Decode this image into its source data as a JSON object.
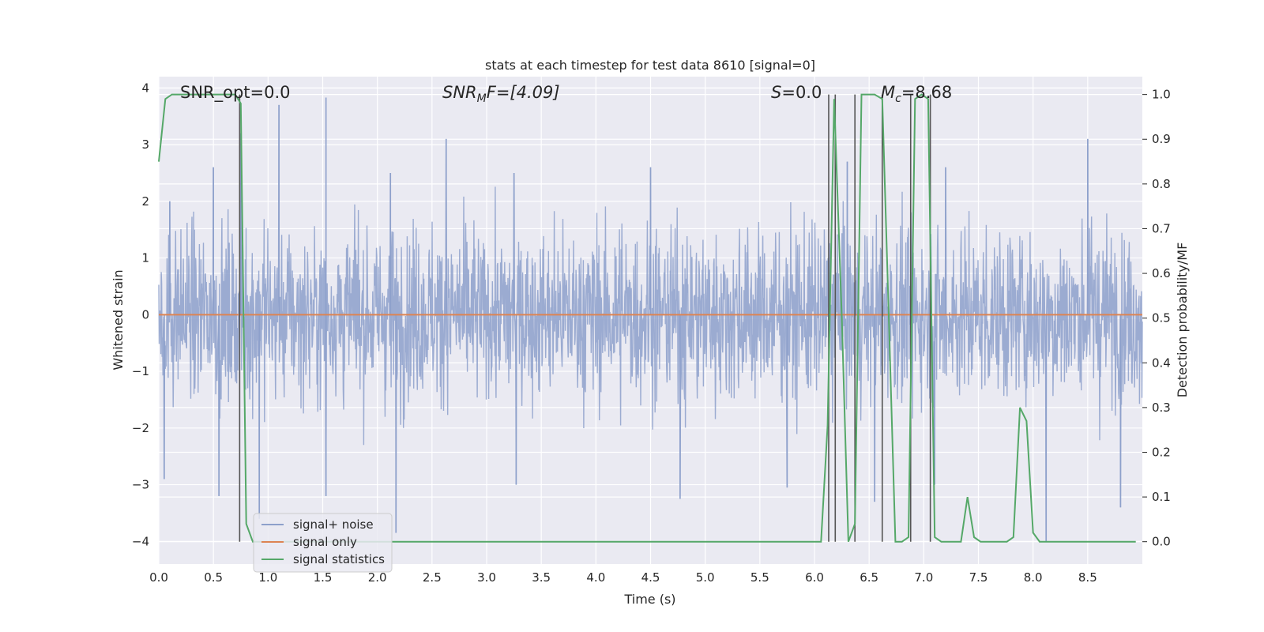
{
  "chart_data": {
    "type": "line",
    "title": "stats at each timestep for test data 8610 [signal=0]",
    "xlabel": "Time (s)",
    "ylabel": "Whitened strain",
    "y2label": "Detection probability/MF",
    "xlim": [
      0.0,
      9.0
    ],
    "ylim": [
      -4.4,
      4.2
    ],
    "y2lim": [
      -0.05,
      1.04
    ],
    "xticks": [
      "0.0",
      "0.5",
      "1.0",
      "1.5",
      "2.0",
      "2.5",
      "3.0",
      "3.5",
      "4.0",
      "4.5",
      "5.0",
      "5.5",
      "6.0",
      "6.5",
      "7.0",
      "7.5",
      "8.0",
      "8.5"
    ],
    "yticks": [
      "4",
      "3",
      "2",
      "1",
      "0",
      "−1",
      "−2",
      "−3",
      "−4"
    ],
    "y2ticks": [
      "1.0",
      "0.9",
      "0.8",
      "0.7",
      "0.6",
      "0.5",
      "0.4",
      "0.3",
      "0.2",
      "0.1",
      "0.0"
    ],
    "grid": true,
    "legend_position": "lower-left",
    "annotations": {
      "snr_opt": "SNR_opt=0.0",
      "snr_mf_label": "SNR",
      "snr_mf_sub": "M",
      "snr_mf_rest": "F=[4.09]",
      "s_label": "S",
      "s_value": "=0.0",
      "mc_label": "M",
      "mc_sub": "c",
      "mc_value": "=8.68"
    },
    "series": [
      {
        "name": "signal+ noise",
        "color": "#8da0cb",
        "description_free": true,
        "noise_amplitude": 0.75,
        "spike_points": [
          {
            "x": 0.1,
            "y": 2.0
          },
          {
            "x": 0.5,
            "y": 2.6
          },
          {
            "x": 0.75,
            "y": 3.2
          },
          {
            "x": 1.1,
            "y": 3.7
          },
          {
            "x": 1.53,
            "y": 3.83
          },
          {
            "x": 2.12,
            "y": 2.5
          },
          {
            "x": 2.63,
            "y": 3.1
          },
          {
            "x": 3.25,
            "y": 2.5
          },
          {
            "x": 4.5,
            "y": 2.6
          },
          {
            "x": 6.3,
            "y": 2.7
          },
          {
            "x": 7.2,
            "y": 2.6
          },
          {
            "x": 8.5,
            "y": 3.1
          },
          {
            "x": 0.05,
            "y": -2.9
          },
          {
            "x": 0.55,
            "y": -3.2
          },
          {
            "x": 0.92,
            "y": -3.6
          },
          {
            "x": 1.53,
            "y": -3.2
          },
          {
            "x": 2.17,
            "y": -3.85
          },
          {
            "x": 3.27,
            "y": -3.0
          },
          {
            "x": 4.77,
            "y": -3.25
          },
          {
            "x": 5.75,
            "y": -3.05
          },
          {
            "x": 6.55,
            "y": -3.3
          },
          {
            "x": 7.1,
            "y": -3.0
          },
          {
            "x": 8.12,
            "y": -4.0
          },
          {
            "x": 8.8,
            "y": -3.4
          }
        ]
      },
      {
        "name": "signal only",
        "color": "#dd8452",
        "x": [
          0.0,
          9.0
        ],
        "y": [
          0.0,
          0.0
        ]
      },
      {
        "name": "signal statistics",
        "color": "#55a868",
        "axis": "right",
        "x": [
          0.0,
          0.06,
          0.12,
          0.7,
          0.75,
          0.8,
          0.86,
          0.92,
          6.0,
          6.06,
          6.12,
          6.18,
          6.25,
          6.31,
          6.37,
          6.43,
          6.49,
          6.55,
          6.62,
          6.68,
          6.74,
          6.8,
          6.86,
          6.92,
          6.98,
          7.04,
          7.1,
          7.16,
          7.22,
          7.28,
          7.34,
          7.4,
          7.46,
          7.52,
          7.58,
          7.76,
          7.82,
          7.88,
          7.94,
          8.0,
          8.06,
          8.94
        ],
        "y": [
          0.85,
          0.99,
          1.0,
          1.0,
          0.98,
          0.04,
          0.0,
          0.0,
          0.0,
          0.0,
          0.26,
          0.99,
          0.5,
          0.0,
          0.04,
          1.0,
          1.0,
          1.0,
          0.99,
          0.5,
          0.0,
          0.0,
          0.01,
          0.99,
          1.0,
          0.99,
          0.01,
          0.0,
          0.0,
          0.0,
          0.0,
          0.1,
          0.01,
          0.0,
          0.0,
          0.0,
          0.01,
          0.3,
          0.27,
          0.02,
          0.0,
          0.0
        ]
      }
    ],
    "vertical_lines_x": [
      0.74,
      6.13,
      6.19,
      6.37,
      6.62,
      6.88,
      7.06
    ],
    "vertical_line_color": "#555555"
  }
}
